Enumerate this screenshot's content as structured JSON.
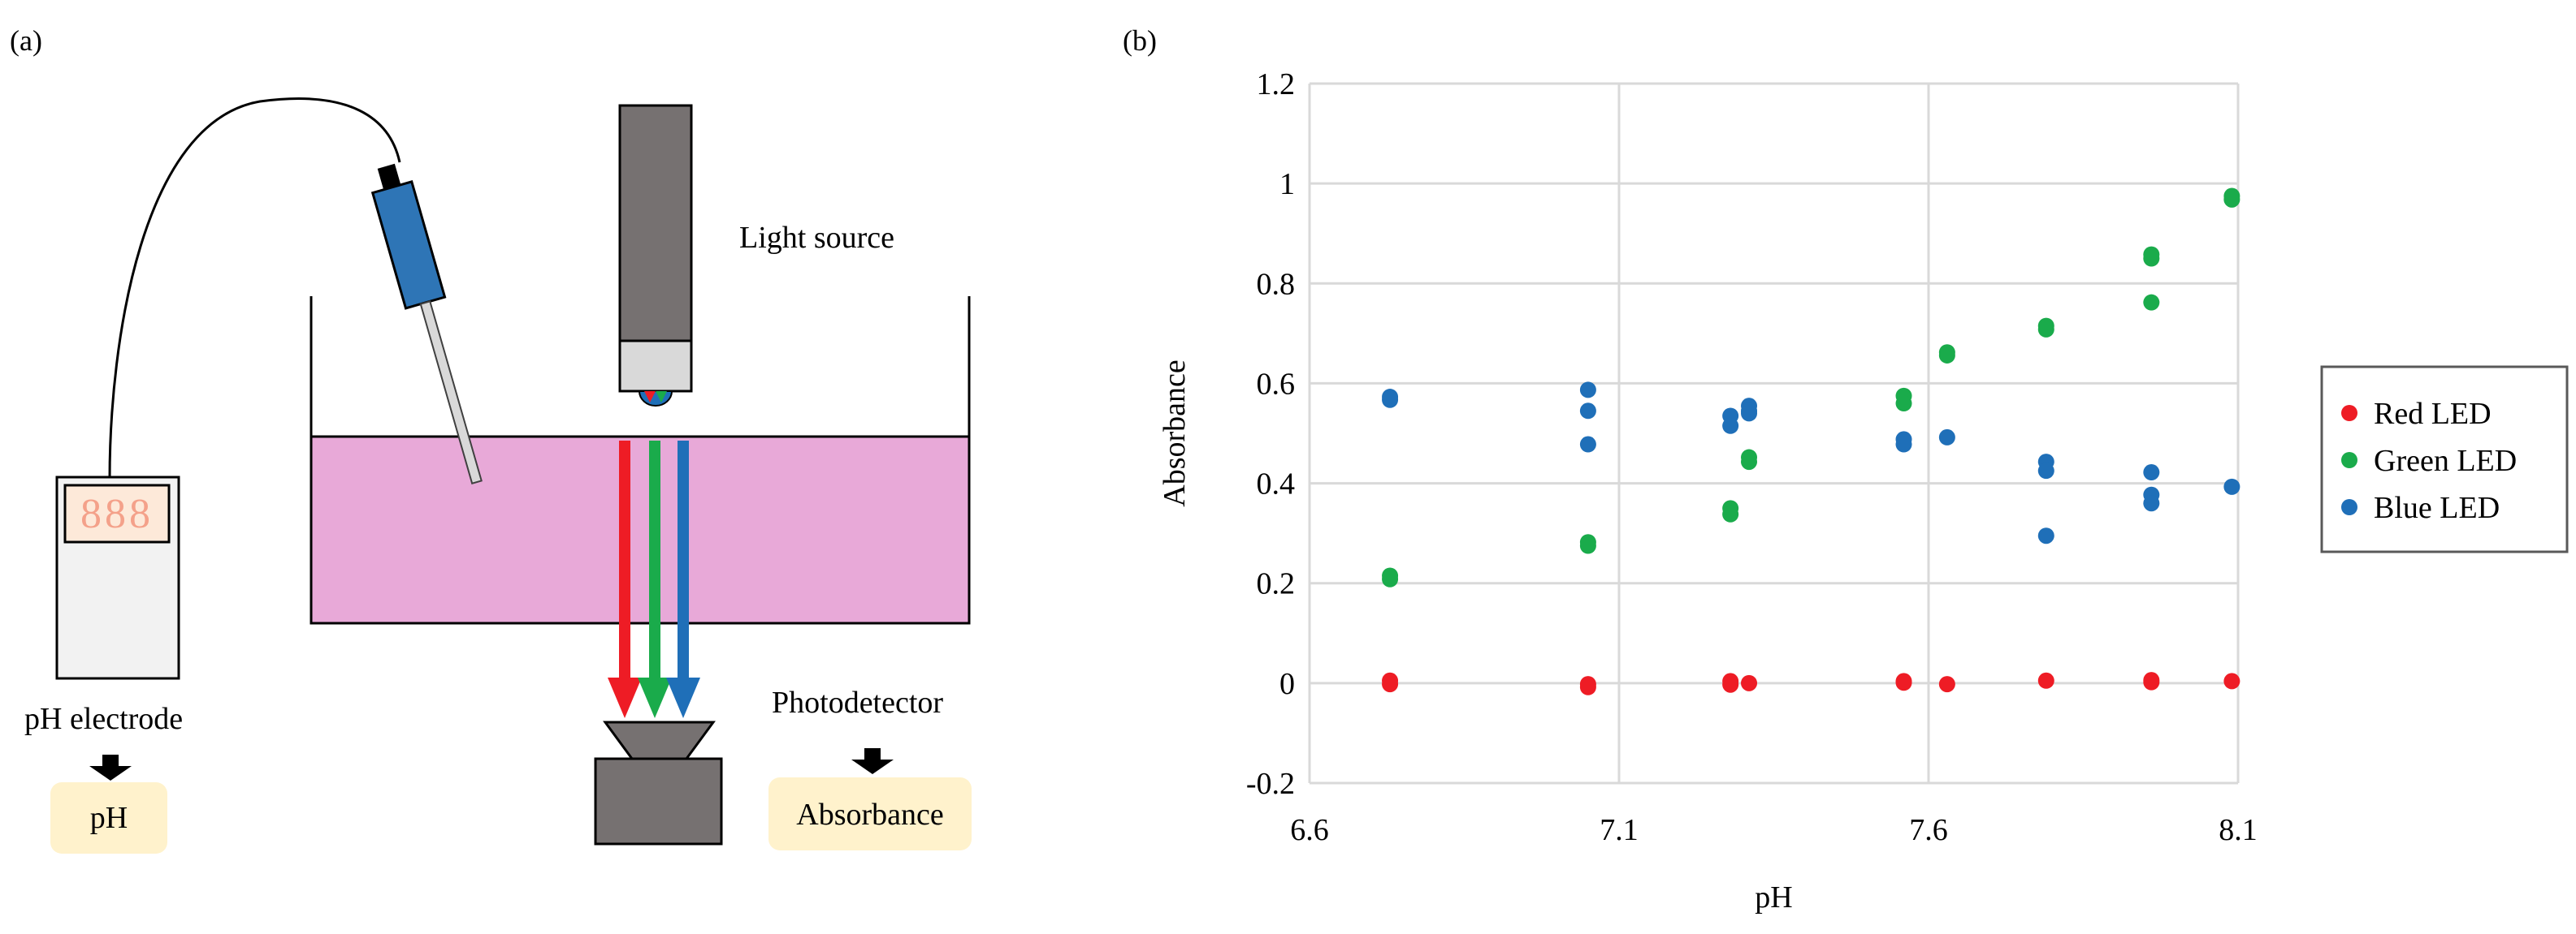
{
  "panel_a": {
    "label": "(a)",
    "light_source_label": "Light source",
    "photodetector_label": "Photodetector",
    "ph_electrode_label": "pH electrode",
    "meter_display": "888",
    "ph_output_label": "pH",
    "absorbance_output_label": "Absorbance"
  },
  "panel_b": {
    "label": "(b)"
  },
  "chart_data": {
    "type": "scatter",
    "title": "",
    "xlabel": "pH",
    "ylabel": "Absorbance",
    "xlim": [
      6.6,
      8.1
    ],
    "ylim": [
      -0.2,
      1.2
    ],
    "xticks": [
      6.6,
      7.1,
      7.6,
      8.1
    ],
    "xtick_labels": [
      "6.6",
      "7.1",
      "7.6",
      "8.1"
    ],
    "yticks": [
      -0.2,
      0,
      0.2,
      0.4,
      0.6,
      0.8,
      1,
      1.2
    ],
    "ytick_labels": [
      "-0.2",
      "0",
      "0.2",
      "0.4",
      "0.6",
      "0.8",
      "1",
      "1.2"
    ],
    "grid": true,
    "legend_position": "right",
    "series": [
      {
        "name": "Red LED",
        "color": "#ee1c25",
        "points": [
          [
            6.73,
            0.005
          ],
          [
            6.73,
            -0.002
          ],
          [
            7.05,
            -0.002
          ],
          [
            7.05,
            -0.008
          ],
          [
            7.28,
            0.004
          ],
          [
            7.28,
            -0.003
          ],
          [
            7.31,
            0.0
          ],
          [
            7.56,
            0.004
          ],
          [
            7.56,
            0.001
          ],
          [
            7.63,
            -0.002
          ],
          [
            7.79,
            0.005
          ],
          [
            7.96,
            0.006
          ],
          [
            7.96,
            0.002
          ],
          [
            8.09,
            0.004
          ]
        ]
      },
      {
        "name": "Green LED",
        "color": "#1aab4b",
        "points": [
          [
            6.73,
            0.215
          ],
          [
            6.73,
            0.208
          ],
          [
            7.05,
            0.282
          ],
          [
            7.05,
            0.275
          ],
          [
            7.28,
            0.35
          ],
          [
            7.28,
            0.338
          ],
          [
            7.31,
            0.452
          ],
          [
            7.31,
            0.443
          ],
          [
            7.56,
            0.575
          ],
          [
            7.56,
            0.56
          ],
          [
            7.63,
            0.662
          ],
          [
            7.63,
            0.656
          ],
          [
            7.79,
            0.715
          ],
          [
            7.79,
            0.708
          ],
          [
            7.96,
            0.858
          ],
          [
            7.96,
            0.85
          ],
          [
            7.96,
            0.762
          ],
          [
            8.09,
            0.975
          ],
          [
            8.09,
            0.968
          ]
        ]
      },
      {
        "name": "Blue LED",
        "color": "#1f6fb8",
        "points": [
          [
            6.73,
            0.573
          ],
          [
            6.73,
            0.567
          ],
          [
            7.05,
            0.587
          ],
          [
            7.05,
            0.545
          ],
          [
            7.05,
            0.478
          ],
          [
            7.28,
            0.535
          ],
          [
            7.28,
            0.515
          ],
          [
            7.31,
            0.555
          ],
          [
            7.31,
            0.545
          ],
          [
            7.31,
            0.54
          ],
          [
            7.56,
            0.488
          ],
          [
            7.56,
            0.478
          ],
          [
            7.63,
            0.492
          ],
          [
            7.79,
            0.443
          ],
          [
            7.79,
            0.425
          ],
          [
            7.79,
            0.295
          ],
          [
            7.96,
            0.422
          ],
          [
            7.96,
            0.377
          ],
          [
            7.96,
            0.36
          ],
          [
            8.09,
            0.393
          ]
        ]
      }
    ]
  }
}
